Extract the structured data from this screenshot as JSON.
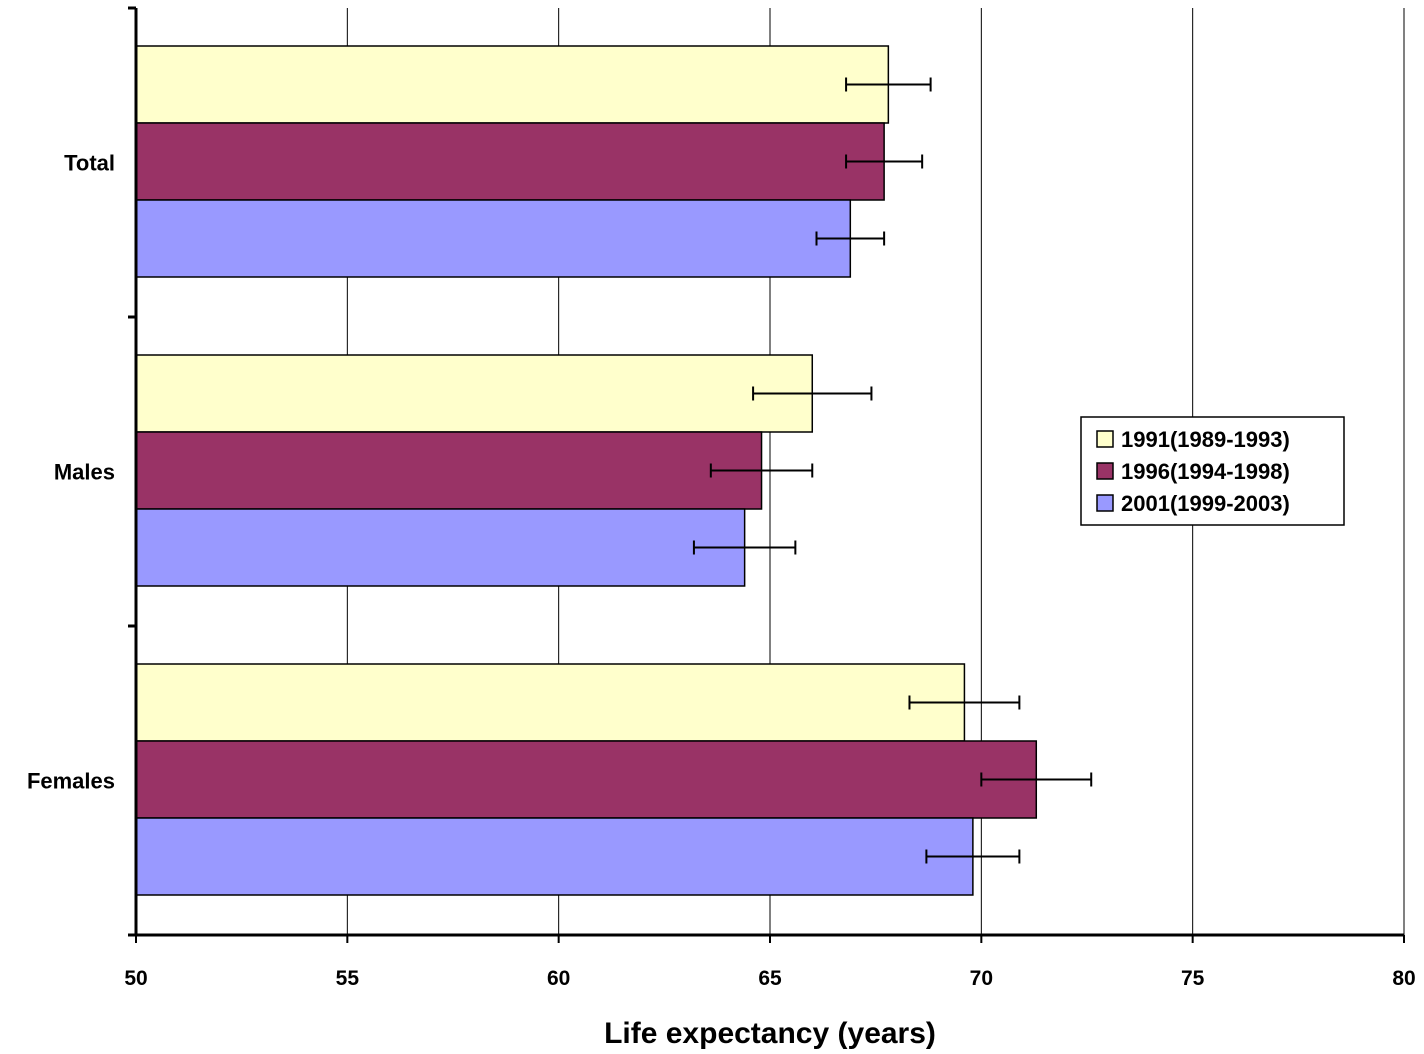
{
  "chart_data": {
    "type": "bar",
    "orientation": "horizontal",
    "categories": [
      "Total",
      "Males",
      "Females"
    ],
    "series": [
      {
        "name": "1991(1989-1993)",
        "color": "#FFFFCC",
        "values": [
          67.8,
          66.0,
          69.6
        ],
        "error_low": [
          66.8,
          64.6,
          68.3
        ],
        "error_high": [
          68.8,
          67.4,
          70.9
        ]
      },
      {
        "name": "1996(1994-1998)",
        "color": "#993366",
        "values": [
          67.7,
          64.8,
          71.3
        ],
        "error_low": [
          66.8,
          63.6,
          70.0
        ],
        "error_high": [
          68.6,
          66.0,
          72.6
        ]
      },
      {
        "name": "2001(1999-2003)",
        "color": "#9999FF",
        "values": [
          66.9,
          64.4,
          69.8
        ],
        "error_low": [
          66.1,
          63.2,
          68.7
        ],
        "error_high": [
          67.7,
          65.6,
          70.9
        ]
      }
    ],
    "xlabel": "Life expectancy (years)",
    "ylabel": "",
    "xlim": [
      50,
      80
    ],
    "xticks": [
      "50",
      "55",
      "60",
      "65",
      "70",
      "75",
      "80"
    ],
    "grid": "vertical",
    "legend_position": "right"
  }
}
